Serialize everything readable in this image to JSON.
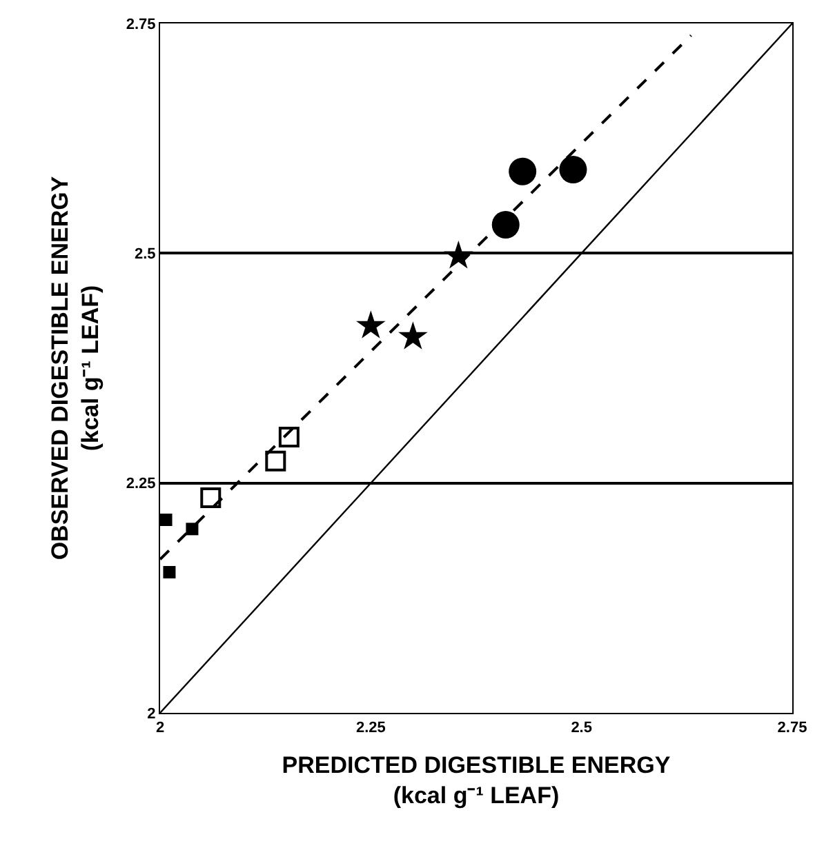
{
  "chart_data": {
    "type": "scatter",
    "xlabel": "PREDICTED DIGESTIBLE ENERGY\n(kcal g⁻¹ LEAF)",
    "ylabel": "OBSERVED DIGESTIBLE ENERGY\n(kcal g⁻¹ LEAF)",
    "xlim": [
      2,
      2.75
    ],
    "ylim": [
      2,
      2.75
    ],
    "xticks": [
      2,
      2.25,
      2.5,
      2.75
    ],
    "yticks": [
      2,
      2.25,
      2.5,
      2.75
    ],
    "grid": "y",
    "legend": false,
    "series": [
      {
        "marker": "square",
        "color": "#000000",
        "x": [
          2.007,
          2.011,
          2.038
        ],
        "values": [
          2.21,
          2.153,
          2.2
        ]
      },
      {
        "marker": "square-open",
        "color": "#000000",
        "x": [
          2.06,
          2.137,
          2.153
        ],
        "values": [
          2.234,
          2.274,
          2.3
        ]
      },
      {
        "marker": "star",
        "color": "#000000",
        "x": [
          2.25,
          2.3,
          2.354
        ],
        "values": [
          2.421,
          2.409,
          2.497
        ]
      },
      {
        "marker": "circle",
        "color": "#000000",
        "x": [
          2.41,
          2.43,
          2.49
        ],
        "values": [
          2.531,
          2.589,
          2.591
        ]
      },
      {
        "type": "line",
        "line_style": "dashed",
        "marker": "none",
        "color": "#000000",
        "x": [
          2,
          2.63
        ],
        "values": [
          2.167,
          2.737
        ]
      },
      {
        "type": "line",
        "line_style": "solid",
        "marker": "none",
        "color": "#000000",
        "x": [
          2,
          2.75
        ],
        "values": [
          2,
          2.75
        ]
      }
    ]
  }
}
